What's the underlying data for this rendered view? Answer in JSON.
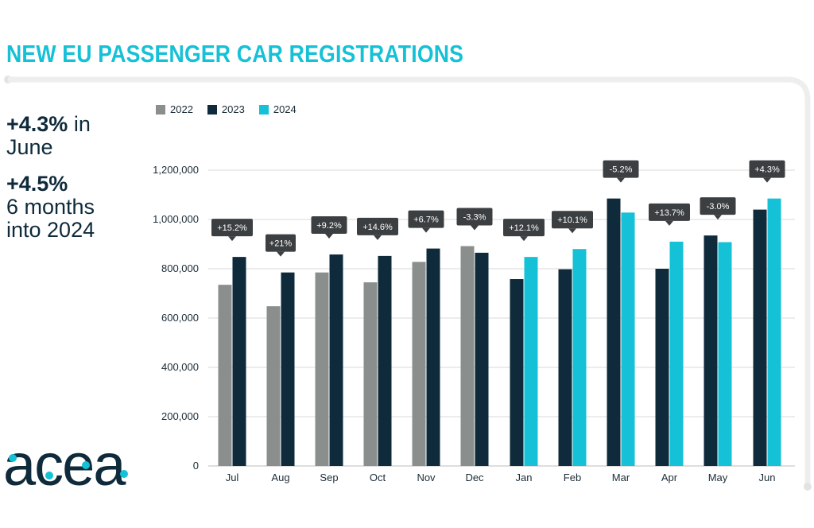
{
  "title": "NEW EU PASSENGER CAR REGISTRATIONS",
  "stats": [
    {
      "big": "+4.3%",
      "rest": " in",
      "line2": "June"
    },
    {
      "big": "+4.5%",
      "rest": "",
      "line2": "6 months",
      "line3": "into 2024"
    }
  ],
  "logo_text": "acea",
  "colors": {
    "title": "#14c1d6",
    "2022": "#8a8f8e",
    "2023": "#0e2a3b",
    "2024": "#14c1d6",
    "annotation_bg": "#3c3f41",
    "grid": "#d9d9d9",
    "panel": "#eeeeee"
  },
  "chart_data": {
    "type": "bar",
    "categories": [
      "Jul",
      "Aug",
      "Sep",
      "Oct",
      "Nov",
      "Dec",
      "Jan",
      "Feb",
      "Mar",
      "Apr",
      "May",
      "Jun"
    ],
    "series": [
      {
        "name": "2022",
        "values": [
          735000,
          648000,
          785000,
          745000,
          828000,
          892000,
          null,
          null,
          null,
          null,
          null,
          null
        ]
      },
      {
        "name": "2023",
        "values": [
          848000,
          785000,
          858000,
          852000,
          882000,
          865000,
          758000,
          798000,
          1085000,
          800000,
          935000,
          1040000
        ]
      },
      {
        "name": "2024",
        "values": [
          null,
          null,
          null,
          null,
          null,
          null,
          848000,
          880000,
          1028000,
          910000,
          908000,
          1085000
        ]
      }
    ],
    "annotations": [
      "+15.2%",
      "+21%",
      "+9.2%",
      "+14.6%",
      "+6.7%",
      "-3.3%",
      "+12.1%",
      "+10.1%",
      "-5.2%",
      "+13.7%",
      "-3.0%",
      "+4.3%"
    ],
    "ylim": [
      0,
      1200000
    ],
    "yticks": [
      0,
      200000,
      400000,
      600000,
      800000,
      1000000,
      1200000
    ],
    "ytick_labels": [
      "0",
      "200,000",
      "400,000",
      "600,000",
      "800,000",
      "1,000,000",
      "1,200,000"
    ],
    "legend": [
      "2022",
      "2023",
      "2024"
    ],
    "legend_position": "top-left",
    "grid": true,
    "xlabel": "",
    "ylabel": ""
  }
}
